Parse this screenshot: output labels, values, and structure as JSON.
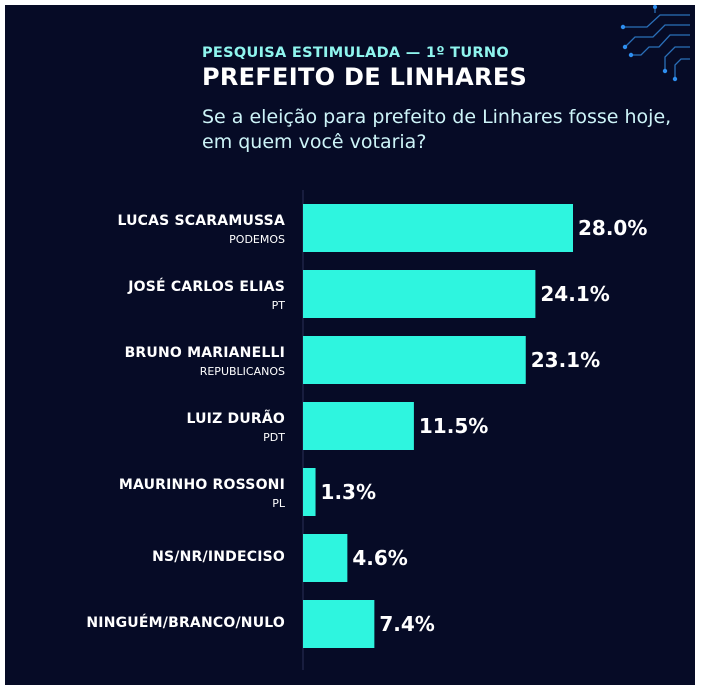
{
  "header": {
    "subtitle": "PESQUISA ESTIMULADA — 1º TURNO",
    "title": "PREFEITO DE LINHARES",
    "question": "Se a eleição para prefeito de Linhares fosse hoje, em quem você votaria?"
  },
  "colors": {
    "background": "#060b26",
    "bar": "#2ef5df",
    "accent": "#8ff5ee"
  },
  "decoration": {
    "icon": "circuit-lines-icon"
  },
  "chart_data": {
    "type": "bar",
    "orientation": "horizontal",
    "categories": [
      "LUCAS SCARAMUSSA",
      "JOSÉ CARLOS ELIAS",
      "BRUNO MARIANELLI",
      "LUIZ DURÃO",
      "MAURINHO ROSSONI",
      "NS/NR/INDECISO",
      "NINGUÉM/BRANCO/NULO"
    ],
    "parties": [
      "PODEMOS",
      "PT",
      "REPUBLICANOS",
      "PDT",
      "PL",
      "",
      ""
    ],
    "values": [
      28.0,
      24.1,
      23.1,
      11.5,
      1.3,
      4.6,
      7.4
    ],
    "value_labels": [
      "28.0%",
      "24.1%",
      "23.1%",
      "11.5%",
      "1.3%",
      "4.6%",
      "7.4%"
    ],
    "title": "PREFEITO DE LINHARES",
    "xlabel": "",
    "ylabel": "",
    "xlim": [
      0,
      28.0
    ],
    "grid": false,
    "legend": "none"
  }
}
